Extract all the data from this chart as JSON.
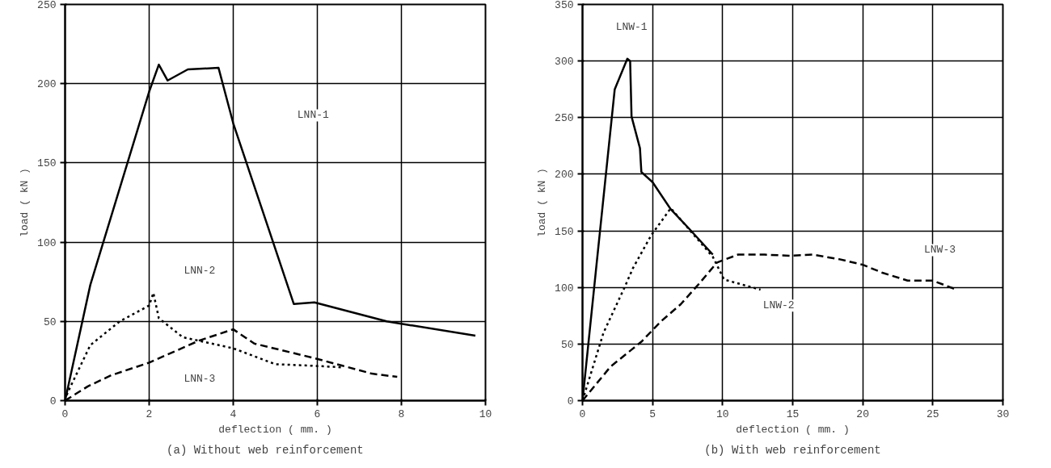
{
  "chart_data": [
    {
      "type": "line",
      "title": "(a)    Without web reinforcement",
      "xlabel": "deflection ( mm. )",
      "ylabel": "load ( kN )",
      "xlim": [
        0,
        10
      ],
      "ylim": [
        0,
        250
      ],
      "xticks": [
        0,
        2,
        4,
        6,
        8,
        10
      ],
      "yticks": [
        0,
        50,
        100,
        150,
        200,
        250
      ],
      "grid": true,
      "series": [
        {
          "color": "#000000",
          "line_style": "solid",
          "x": [
            0,
            0.6,
            2.0,
            2.23,
            2.44,
            2.92,
            3.65,
            4.0,
            5.44,
            5.93,
            7.65,
            9.76
          ],
          "values": [
            0,
            73,
            195,
            212,
            202,
            209,
            210,
            175,
            61,
            62,
            50,
            41
          ]
        },
        {
          "color": "#000000",
          "line_style": "dotted",
          "x": [
            0,
            0.06,
            0.6,
            1.3,
            2.0,
            2.1,
            2.23,
            2.8,
            4.0,
            5.0,
            5.9,
            6.6
          ],
          "values": [
            0,
            5,
            35,
            50,
            60,
            68,
            52,
            40,
            33,
            23,
            22,
            21
          ]
        },
        {
          "color": "#000000",
          "line_style": "dashed",
          "x": [
            0,
            0.54,
            1.1,
            2.0,
            3.2,
            4.0,
            4.5,
            5.9,
            6.6,
            7.3,
            7.9
          ],
          "values": [
            0,
            9,
            16,
            24,
            38,
            45,
            36,
            27,
            22,
            17,
            15
          ]
        }
      ],
      "annotations": [
        {
          "text": "LNN-1",
          "x": 5.9,
          "y": 180
        },
        {
          "text": "LNN-2",
          "x": 3.2,
          "y": 82
        },
        {
          "text": "LNN-3",
          "x": 3.2,
          "y": 14
        }
      ]
    },
    {
      "type": "line",
      "title": "(b) With web reinforcement",
      "xlabel": "deflection ( mm. )",
      "ylabel": "load ( kN )",
      "xlim": [
        0,
        30
      ],
      "ylim": [
        0,
        350
      ],
      "xticks": [
        0,
        5,
        10,
        15,
        20,
        25,
        30
      ],
      "yticks": [
        0,
        50,
        100,
        150,
        200,
        250,
        300,
        350
      ],
      "grid": true,
      "series": [
        {
          "color": "#000000",
          "line_style": "solid",
          "x": [
            0,
            1,
            2.3,
            3.2,
            3.4,
            3.5,
            4.1,
            4.2,
            5.0,
            6.3,
            7.6,
            9.3
          ],
          "values": [
            0,
            120,
            275,
            302,
            300,
            251,
            223,
            202,
            193,
            169,
            152,
            129
          ]
        },
        {
          "color": "#000000",
          "line_style": "dotted",
          "x": [
            0,
            1.5,
            3.0,
            3.6,
            4.9,
            6.3,
            9.3,
            10.1,
            12.7
          ],
          "values": [
            0,
            60,
            100,
            117,
            146,
            170,
            127,
            107,
            98
          ]
        },
        {
          "color": "#000000",
          "line_style": "dashed",
          "x": [
            0,
            2,
            3.5,
            4.2,
            5.6,
            7,
            8.3,
            9.6,
            11.1,
            13,
            14.8,
            16.4,
            18.3,
            20,
            21.4,
            23.2,
            25,
            26.7
          ],
          "values": [
            0,
            30,
            45,
            52,
            70,
            85,
            103,
            122,
            129,
            129,
            128,
            129,
            125,
            120,
            113,
            106,
            106,
            98
          ]
        }
      ],
      "annotations": [
        {
          "text": "LNW-1",
          "x": 3.5,
          "y": 330
        },
        {
          "text": "LNW-2",
          "x": 14,
          "y": 84
        },
        {
          "text": "LNW-3",
          "x": 25.5,
          "y": 133
        }
      ]
    }
  ]
}
